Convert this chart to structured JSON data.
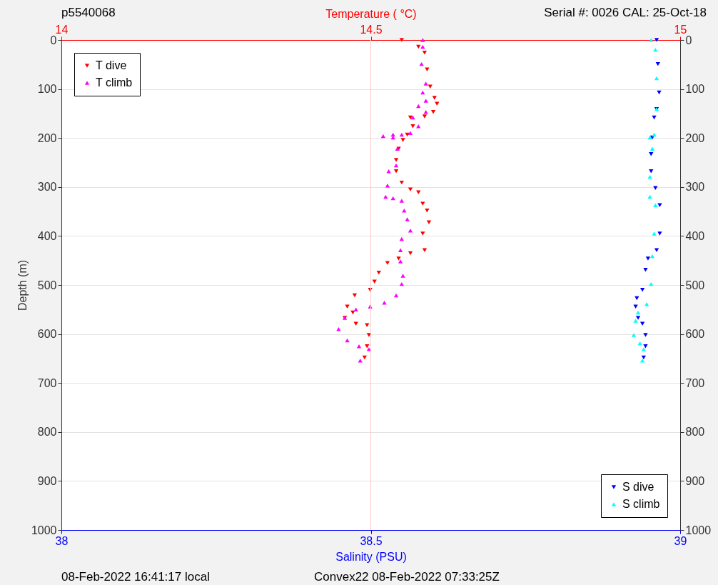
{
  "chart_data": {
    "type": "scatter",
    "xlabel": "Salinity (PSU)",
    "x2label": "Temperature ( °C)",
    "ylabel": "Depth (m)",
    "xlim": [
      38,
      39
    ],
    "xticks": [
      38,
      38.5,
      39
    ],
    "x2lim": [
      14,
      15
    ],
    "x2ticks": [
      14,
      14.5,
      15
    ],
    "ylim": [
      1000,
      0
    ],
    "yticks": [
      0,
      100,
      200,
      300,
      400,
      500,
      600,
      700,
      800,
      900,
      1000
    ],
    "y2lim": [
      1000,
      0
    ],
    "y2ticks": [
      0,
      100,
      200,
      300,
      400,
      500,
      600,
      700,
      800,
      900,
      1000
    ],
    "grid": "y",
    "legend": "top left",
    "ref_lines": [
      {
        "axis": "x2",
        "value": 14.5,
        "color": "#ffcccc"
      }
    ],
    "annotations": [
      "p5540068",
      "Serial #: 0026 CAL: 25-Oct-18",
      "08-Feb-2022 16:41:17 local",
      "Convex22 08-Feb-2022 07:33:25Z"
    ],
    "series": [
      {
        "name": "T dive",
        "color": "#ff0000",
        "axis": "x2",
        "marker": "triangle-down",
        "x": [
          14.55,
          14.577,
          14.587,
          14.591,
          14.596,
          14.603,
          14.607,
          14.601,
          14.587,
          14.564,
          14.568,
          14.559,
          14.552,
          14.545,
          14.541,
          14.541,
          14.55,
          14.564,
          14.577,
          14.584,
          14.591,
          14.594,
          14.584,
          14.587,
          14.564,
          14.545,
          14.527,
          14.513,
          14.506,
          14.499,
          14.474,
          14.462,
          14.471,
          14.458,
          14.476,
          14.494,
          14.497,
          14.494,
          14.49
        ],
        "values": [
          0,
          14,
          26,
          60,
          95,
          118,
          130,
          147,
          156,
          158,
          176,
          193,
          204,
          222,
          245,
          268,
          291,
          305,
          311,
          334,
          348,
          372,
          395,
          429,
          435,
          446,
          455,
          475,
          493,
          510,
          521,
          544,
          556,
          567,
          579,
          582,
          602,
          625,
          648
        ]
      },
      {
        "name": "T climb",
        "color": "#ff00ff",
        "axis": "x2",
        "marker": "triangle",
        "x": [
          14.584,
          14.584,
          14.582,
          14.589,
          14.584,
          14.589,
          14.577,
          14.589,
          14.568,
          14.577,
          14.564,
          14.55,
          14.536,
          14.52,
          14.536,
          14.543,
          14.541,
          14.529,
          14.527,
          14.524,
          14.536,
          14.55,
          14.554,
          14.559,
          14.564,
          14.55,
          14.548,
          14.548,
          14.552,
          14.55,
          14.541,
          14.522,
          14.499,
          14.476,
          14.458,
          14.448,
          14.462,
          14.481,
          14.497,
          14.483
        ],
        "values": [
          0,
          14,
          49,
          89,
          107,
          124,
          135,
          147,
          158,
          176,
          190,
          193,
          193,
          196,
          199,
          222,
          256,
          268,
          297,
          320,
          323,
          328,
          348,
          366,
          389,
          406,
          429,
          452,
          481,
          498,
          521,
          536,
          544,
          550,
          567,
          590,
          613,
          625,
          631,
          654
        ]
      },
      {
        "name": "S dive",
        "color": "#0000ff",
        "marker": "triangle-down",
        "x": [
          38.962,
          38.964,
          38.966,
          38.962,
          38.958,
          38.955,
          38.953,
          38.953,
          38.96,
          38.967,
          38.967,
          38.962,
          38.948,
          38.944,
          38.939,
          38.93,
          38.928,
          38.932,
          38.939,
          38.944,
          38.944,
          38.941
        ],
        "values": [
          0,
          49,
          107,
          141,
          158,
          199,
          233,
          268,
          302,
          337,
          395,
          429,
          446,
          469,
          510,
          527,
          544,
          567,
          579,
          602,
          625,
          648
        ]
      },
      {
        "name": "S climb",
        "color": "#00ffff",
        "marker": "triangle",
        "x": [
          38.953,
          38.96,
          38.962,
          38.962,
          38.958,
          38.951,
          38.955,
          38.951,
          38.951,
          38.96,
          38.958,
          38.955,
          38.953,
          38.946,
          38.932,
          38.928,
          38.925,
          38.935,
          38.941,
          38.939
        ],
        "values": [
          0,
          20,
          78,
          141,
          193,
          199,
          222,
          279,
          320,
          337,
          395,
          441,
          498,
          539,
          556,
          573,
          602,
          619,
          631,
          654
        ]
      }
    ]
  }
}
